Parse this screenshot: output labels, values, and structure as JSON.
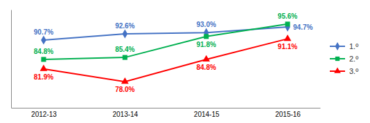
{
  "chart_data": {
    "type": "line",
    "categories": [
      "2012-13",
      "2013-14",
      "2014-15",
      "2015-16"
    ],
    "series": [
      {
        "name": "1.º",
        "color": "#4472C4",
        "marker": "diamond",
        "values": [
          90.7,
          92.6,
          93.0,
          94.7
        ],
        "value_labels": [
          "90.7%",
          "92.6%",
          "93.0%",
          "94.7%"
        ]
      },
      {
        "name": "2.º",
        "color": "#00B050",
        "marker": "square",
        "values": [
          84.8,
          85.4,
          91.8,
          95.6
        ],
        "value_labels": [
          "84.8%",
          "85.4%",
          "91.8%",
          "95.6%"
        ]
      },
      {
        "name": "3.º",
        "color": "#FF0000",
        "marker": "triangle",
        "values": [
          81.9,
          78.0,
          84.8,
          91.1
        ],
        "value_labels": [
          "81.9%",
          "78.0%",
          "84.8%",
          "91.1%"
        ]
      }
    ],
    "ylim": [
      70,
      100
    ],
    "grid": false,
    "data_labels": true,
    "tick_labels": "x",
    "legend": "right"
  }
}
